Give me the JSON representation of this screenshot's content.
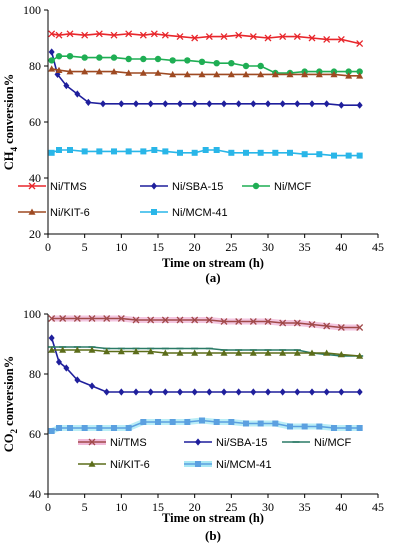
{
  "chart_data": [
    {
      "type": "line",
      "panel_label": "(a)",
      "ylabel": "CH4 conversion%",
      "xlabel": "Time on stream (h)",
      "xlim": [
        0,
        45
      ],
      "ylim": [
        20,
        100
      ],
      "xticks": [
        "0",
        "5",
        "10",
        "15",
        "20",
        "25",
        "30",
        "35",
        "40",
        "45"
      ],
      "yticks": [
        "20",
        "40",
        "60",
        "80",
        "100"
      ],
      "legend_rows": [
        [
          "Ni/TMS",
          "Ni/SBA-15",
          "Ni/MCF"
        ],
        [
          "Ni/KIT-6",
          "Ni/MCM-41"
        ]
      ],
      "series": [
        {
          "name": "Ni/TMS",
          "color": "#e8262b",
          "marker": "x",
          "x": [
            0.5,
            1.5,
            3,
            5,
            7,
            9,
            11,
            13,
            14.5,
            16,
            18,
            20,
            22,
            24,
            26,
            28,
            30,
            32,
            34,
            36,
            38,
            40,
            42.5
          ],
          "y": [
            91.5,
            91,
            91.5,
            91,
            91.5,
            91,
            91.5,
            91,
            91.5,
            91,
            90.5,
            90,
            90.5,
            90.5,
            91,
            90.5,
            90,
            90.5,
            90.5,
            90,
            89.5,
            89.5,
            88
          ]
        },
        {
          "name": "Ni/SBA-15",
          "color": "#1f1f9c",
          "marker": "diamond",
          "x": [
            0.5,
            1.3,
            2.5,
            4,
            5.5,
            7.5,
            10,
            12,
            14,
            16,
            18,
            20,
            22,
            24,
            26,
            28,
            30,
            32,
            34,
            36,
            38,
            40,
            42.5
          ],
          "y": [
            85,
            77,
            73,
            70,
            67,
            66.5,
            66.5,
            66.5,
            66.5,
            66.5,
            66.5,
            66.5,
            66.5,
            66.5,
            66.5,
            66.5,
            66.5,
            66.5,
            66.5,
            66.5,
            66.5,
            66,
            66
          ]
        },
        {
          "name": "Ni/MCF",
          "color": "#1fae54",
          "marker": "circle",
          "x": [
            0.5,
            1.5,
            3,
            5,
            7,
            9,
            11,
            13,
            15,
            17,
            19,
            21,
            23,
            25,
            27,
            29,
            31,
            33,
            35,
            37,
            39,
            41,
            42.5
          ],
          "y": [
            82,
            83.5,
            83.5,
            83,
            83,
            83,
            82.5,
            82.5,
            82.5,
            82,
            82,
            81.5,
            81,
            81,
            80,
            80,
            77.5,
            77.5,
            78,
            78,
            78,
            78,
            78
          ]
        },
        {
          "name": "Ni/KIT-6",
          "color": "#9e4a22",
          "marker": "triangle",
          "x": [
            0.5,
            1.5,
            3,
            5,
            7,
            9,
            11,
            13,
            15,
            17,
            19,
            21,
            23,
            25,
            27,
            29,
            31,
            33,
            35,
            37,
            39,
            41,
            42.5
          ],
          "y": [
            79,
            78.5,
            78,
            78,
            78,
            78,
            77.5,
            77.5,
            77.5,
            77,
            77,
            77,
            77,
            77,
            77,
            77,
            77,
            77,
            77,
            77,
            77,
            76.5,
            76.5
          ]
        },
        {
          "name": "Ni/MCM-41",
          "color": "#29b6e8",
          "marker": "square",
          "x": [
            0.5,
            1.5,
            3,
            5,
            7,
            9,
            11,
            13,
            14.5,
            16,
            18,
            20,
            21.5,
            23,
            25,
            27,
            29,
            31,
            33,
            35,
            37,
            39,
            41,
            42.5
          ],
          "y": [
            49,
            50,
            50,
            49.5,
            49.5,
            49.5,
            49.5,
            49.5,
            50,
            49.5,
            49,
            49,
            50,
            50,
            49,
            49,
            49,
            49,
            49,
            48.5,
            48.5,
            48,
            48,
            48
          ]
        }
      ]
    },
    {
      "type": "line",
      "panel_label": "(b)",
      "ylabel": "CO2 conversion%",
      "xlabel": "Time on stream (h)",
      "xlim": [
        0,
        45
      ],
      "ylim": [
        40,
        100
      ],
      "xticks": [
        "0",
        "5",
        "10",
        "15",
        "20",
        "25",
        "30",
        "35",
        "40",
        "45"
      ],
      "yticks": [
        "40",
        "60",
        "80",
        "100"
      ],
      "legend_rows": [
        [
          "Ni/TMS",
          "Ni/SBA-15",
          "Ni/MCF"
        ],
        [
          "Ni/KIT-6",
          "Ni/MCM-41"
        ]
      ],
      "series": [
        {
          "name": "Ni/TMS",
          "color": "#a14a4a",
          "marker": "x",
          "glow": "#f0b8d8",
          "x": [
            0.5,
            2,
            4,
            6,
            8,
            10,
            12,
            14,
            16,
            18,
            20,
            22,
            24,
            26,
            28,
            30,
            32,
            34,
            36,
            38,
            40,
            42.5
          ],
          "y": [
            98.5,
            98.5,
            98.5,
            98.5,
            98.5,
            98.5,
            98,
            98,
            98,
            98,
            98,
            98,
            97.5,
            97.5,
            97.5,
            97.5,
            97,
            97,
            96.5,
            96,
            95.5,
            95.5
          ]
        },
        {
          "name": "Ni/SBA-15",
          "color": "#1f1f9c",
          "marker": "diamond",
          "x": [
            0.5,
            1.5,
            2.5,
            4,
            6,
            8,
            10,
            12,
            14,
            16,
            18,
            20,
            22,
            24,
            26,
            28,
            30,
            32,
            34,
            36,
            38,
            40,
            42.5
          ],
          "y": [
            92,
            84,
            82,
            78,
            76,
            74,
            74,
            74,
            74,
            74,
            74,
            74,
            74,
            74,
            74,
            74,
            74,
            74,
            74,
            74,
            74,
            74,
            74
          ]
        },
        {
          "name": "Ni/MCF",
          "color": "#2a7a66",
          "marker": "dash",
          "x": [
            0.5,
            2,
            4,
            6,
            8,
            10,
            12,
            14,
            16,
            18,
            20,
            22,
            24,
            26,
            28,
            30,
            32,
            34,
            36,
            38,
            40,
            42.5
          ],
          "y": [
            89,
            89,
            89,
            89,
            88.5,
            88.5,
            88.5,
            88.5,
            88.5,
            88.5,
            88.5,
            88.5,
            88,
            88,
            88,
            88,
            88,
            88,
            87,
            86.5,
            86,
            86
          ]
        },
        {
          "name": "Ni/KIT-6",
          "color": "#5c6d1a",
          "marker": "triangle",
          "x": [
            0.5,
            2,
            4,
            6,
            8,
            10,
            12,
            14,
            16,
            18,
            20,
            22,
            24,
            26,
            28,
            30,
            32,
            34,
            36,
            38,
            40,
            42.5
          ],
          "y": [
            88,
            88,
            88,
            88,
            87.5,
            87.5,
            87.5,
            87.5,
            87,
            87,
            87,
            87,
            87,
            87,
            87,
            87,
            87,
            87,
            87,
            87,
            86.5,
            86
          ]
        },
        {
          "name": "Ni/MCM-41",
          "color": "#5ba0e0",
          "marker": "square",
          "glow": "#a8e8f4",
          "x": [
            0.5,
            1.5,
            3,
            5,
            7,
            9,
            11,
            13,
            15,
            17,
            19,
            21,
            23,
            25,
            27,
            29,
            31,
            33,
            35,
            37,
            39,
            41,
            42.5
          ],
          "y": [
            61,
            62,
            62,
            62,
            62,
            62,
            62,
            64,
            64,
            64,
            64,
            64.5,
            64,
            64,
            63.5,
            63.5,
            63.5,
            62.5,
            62.5,
            62.5,
            62,
            62,
            62
          ]
        }
      ]
    }
  ]
}
